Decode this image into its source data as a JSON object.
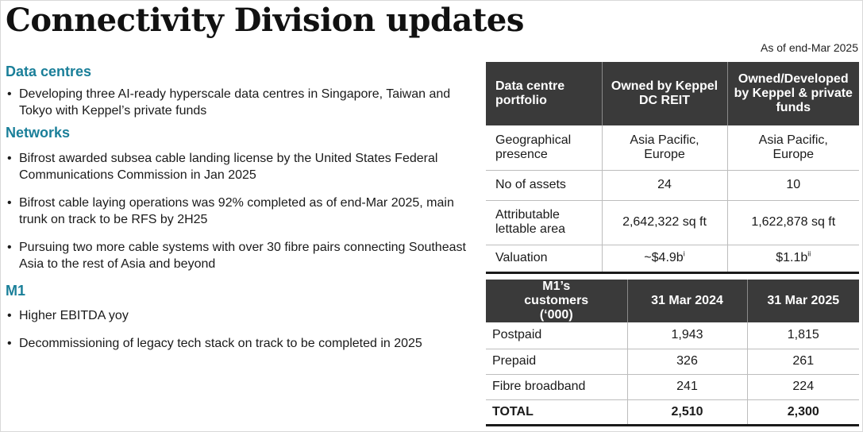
{
  "title": "Connectivity Division updates",
  "as_of": "As of end-Mar 2025",
  "sections": [
    {
      "heading": "Data centres",
      "bullets": [
        "Developing three AI-ready hyperscale data centres in Singapore, Taiwan and Tokyo with Keppel’s private funds"
      ]
    },
    {
      "heading": "Networks",
      "bullets": [
        "Bifrost awarded subsea cable landing license by the United States Federal Communications Commission in Jan 2025",
        "Bifrost cable laying operations was 92% completed as of end-Mar 2025, main trunk on track to be RFS by 2H25",
        "Pursuing two more cable systems with over 30 fibre pairs connecting Southeast Asia to the rest of Asia and beyond"
      ]
    },
    {
      "heading": "M1",
      "bullets": [
        "Higher EBITDA yoy",
        "Decommissioning of legacy tech stack on track to be completed in 2025"
      ]
    }
  ],
  "dc_table": {
    "headers": [
      "Data centre portfolio",
      "Owned by Keppel DC REIT",
      "Owned/Developed by Keppel & private funds"
    ],
    "rows": [
      [
        "Geographical presence",
        "Asia Pacific, Europe",
        "Asia Pacific, Europe"
      ],
      [
        "No of assets",
        "24",
        "10"
      ],
      [
        "Attributable lettable area",
        "2,642,322 sq ft",
        "1,622,878 sq ft"
      ],
      [
        "Valuation",
        "~$4.9b",
        "$1.1b"
      ]
    ],
    "valuation_notes": [
      "i",
      "ii"
    ]
  },
  "m1_table": {
    "headers": [
      "M1’s customers (‘000)",
      "31 Mar 2024",
      "31 Mar 2025"
    ],
    "rows": [
      [
        "Postpaid",
        "1,943",
        "1,815"
      ],
      [
        "Prepaid",
        "326",
        "261"
      ],
      [
        "Fibre broadband",
        "241",
        "224"
      ]
    ],
    "total": [
      "TOTAL",
      "2,510",
      "2,300"
    ]
  },
  "colors": {
    "heading_teal": "#1a7f99",
    "table_header": "#3a3a3a"
  }
}
